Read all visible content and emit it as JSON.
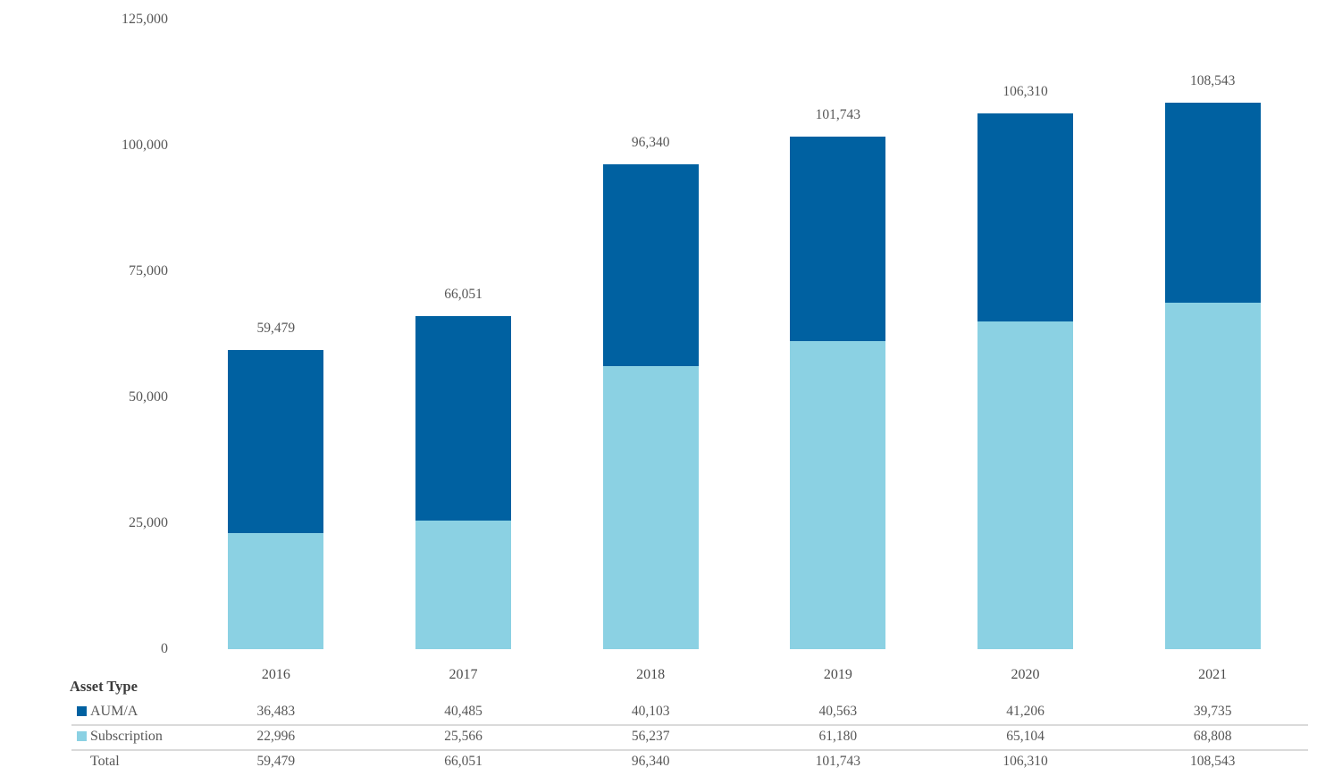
{
  "chart_data": {
    "type": "bar",
    "stacked": true,
    "title": "",
    "xlabel": "",
    "ylabel": "",
    "categories": [
      "2016",
      "2017",
      "2018",
      "2019",
      "2020",
      "2021"
    ],
    "series": [
      {
        "name": "AUM/A",
        "color": "#0061A1",
        "values": [
          36483,
          40485,
          40103,
          40563,
          41206,
          39735
        ]
      },
      {
        "name": "Subscription",
        "color": "#8BD1E3",
        "values": [
          22996,
          25566,
          56237,
          61180,
          65104,
          68808
        ]
      }
    ],
    "totals": [
      59479,
      66051,
      96340,
      101743,
      106310,
      108543
    ],
    "ylim": [
      0,
      125000
    ],
    "y_ticks": [
      0,
      25000,
      50000,
      75000,
      100000,
      125000
    ],
    "grid": false,
    "axis_line": false,
    "bar_labels": "total-above-bar",
    "legend_position": "table-below-chart"
  },
  "table": {
    "legend_title": "Asset Type",
    "total_label": "Total"
  },
  "colors": {
    "aum_a": "#0061A1",
    "subscription": "#8BD1E3",
    "text": "#575757",
    "divider": "#DADADA",
    "background": "#FFFFFF"
  }
}
